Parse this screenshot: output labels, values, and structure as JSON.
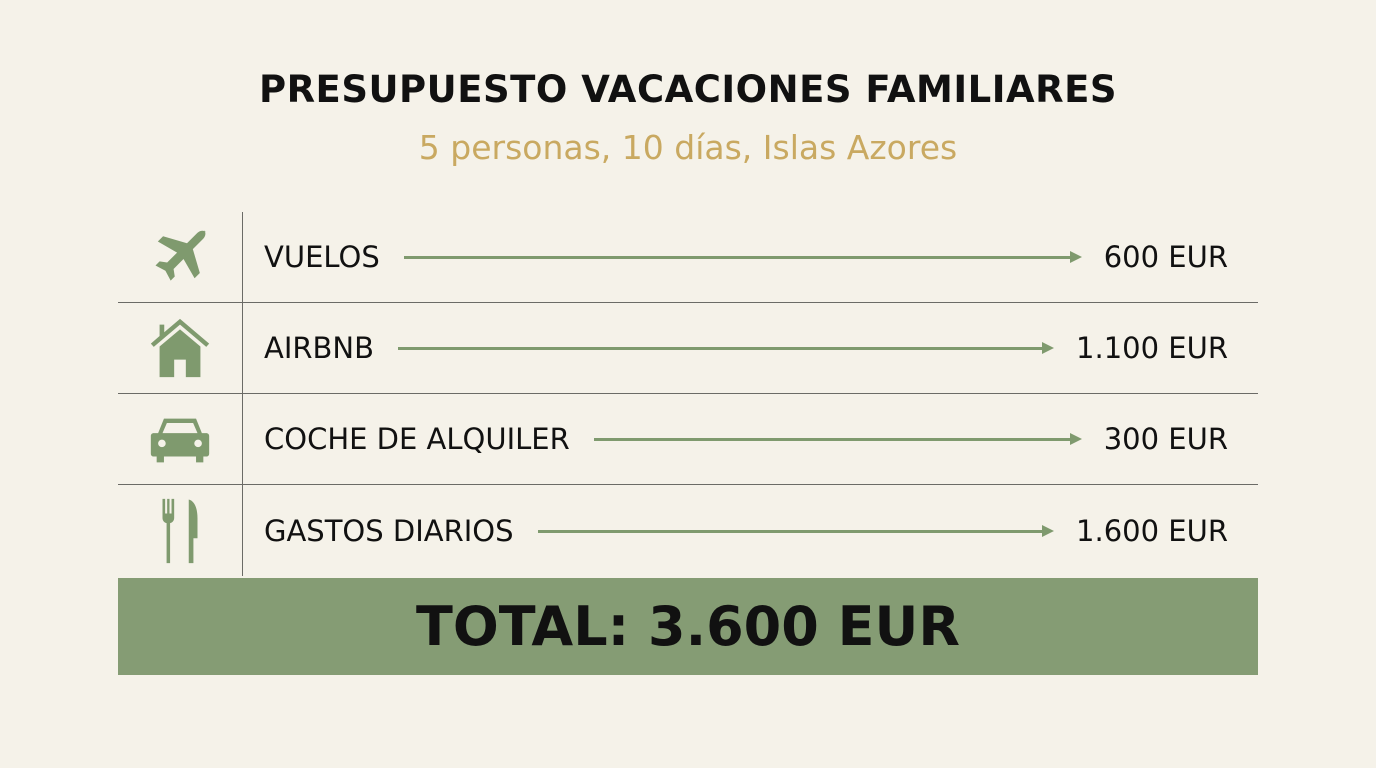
{
  "title": "PRESUPUESTO VACACIONES FAMILIARES",
  "subtitle": "5 personas, 10 días, Islas Azores",
  "colors": {
    "accent": "#859c74",
    "subtitle": "#c9a961",
    "background": "#f5f2e9"
  },
  "items": [
    {
      "icon": "airplane-icon",
      "label": "VUELOS",
      "value": "600 EUR"
    },
    {
      "icon": "house-icon",
      "label": "AIRBNB",
      "value": "1.100 EUR"
    },
    {
      "icon": "car-icon",
      "label": "COCHE DE ALQUILER",
      "value": "300 EUR"
    },
    {
      "icon": "fork-knife-icon",
      "label": "GASTOS DIARIOS",
      "value": "1.600 EUR"
    }
  ],
  "total": "TOTAL: 3.600 EUR"
}
